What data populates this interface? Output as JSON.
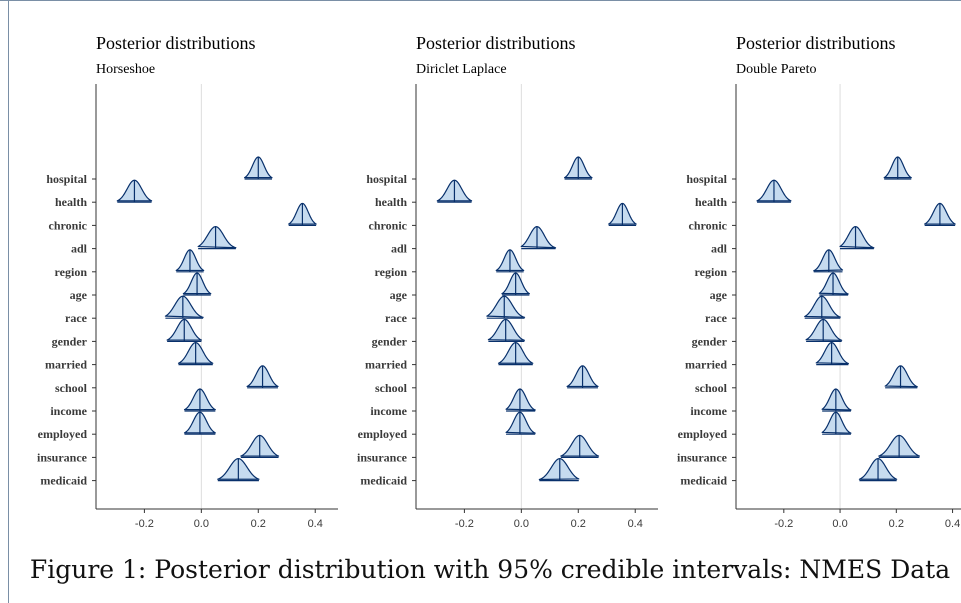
{
  "caption": "Figure 1: Posterior distribution with 95% credible intervals: NMES Data",
  "colors": {
    "fill": "#c6dbef",
    "stroke": "#08306b",
    "axis": "#333333",
    "zero_line": "#dddddd"
  },
  "chart_data": [
    {
      "type": "ridgeline",
      "title": "Posterior distributions",
      "subtitle": "Horseshoe",
      "x_ticks": [
        -0.2,
        0.0,
        0.2,
        0.4
      ],
      "x_tick_labels": [
        "-0.2",
        "0.0",
        "0.2",
        "0.4"
      ],
      "xlim": [
        -0.37,
        0.48
      ],
      "zero_line": true,
      "categories": [
        "hospital",
        "health",
        "chronic",
        "adl",
        "region",
        "age",
        "race",
        "gender",
        "married",
        "school",
        "income",
        "employed",
        "insurance",
        "medicaid"
      ],
      "means": [
        0.2,
        -0.235,
        0.355,
        0.05,
        -0.04,
        -0.015,
        -0.065,
        -0.06,
        -0.02,
        0.215,
        -0.005,
        -0.005,
        0.205,
        0.13
      ],
      "ci_lower": [
        0.16,
        -0.285,
        0.315,
        0.0,
        -0.08,
        -0.055,
        -0.115,
        -0.11,
        -0.07,
        0.17,
        -0.05,
        -0.05,
        0.15,
        0.07
      ],
      "ci_upper": [
        0.24,
        -0.185,
        0.395,
        0.11,
        0.0,
        0.025,
        -0.005,
        -0.01,
        0.03,
        0.26,
        0.04,
        0.04,
        0.26,
        0.19
      ]
    },
    {
      "type": "ridgeline",
      "title": "Posterior distributions",
      "subtitle": "Diriclet Laplace",
      "x_ticks": [
        -0.2,
        0.0,
        0.2,
        0.4
      ],
      "x_tick_labels": [
        "-0.2",
        "0.0",
        "0.2",
        "0.4"
      ],
      "xlim": [
        -0.37,
        0.48
      ],
      "zero_line": true,
      "categories": [
        "hospital",
        "health",
        "chronic",
        "adl",
        "region",
        "age",
        "race",
        "gender",
        "married",
        "school",
        "income",
        "employed",
        "insurance",
        "medicaid"
      ],
      "means": [
        0.2,
        -0.235,
        0.355,
        0.055,
        -0.04,
        -0.02,
        -0.06,
        -0.055,
        -0.02,
        0.215,
        -0.005,
        -0.005,
        0.205,
        0.135
      ],
      "ci_lower": [
        0.16,
        -0.285,
        0.315,
        0.01,
        -0.08,
        -0.06,
        -0.11,
        -0.105,
        -0.07,
        0.17,
        -0.045,
        -0.045,
        0.15,
        0.075
      ],
      "ci_upper": [
        0.24,
        -0.185,
        0.395,
        0.11,
        0.0,
        0.02,
        0.0,
        0.0,
        0.03,
        0.26,
        0.04,
        0.04,
        0.26,
        0.19
      ]
    },
    {
      "type": "ridgeline",
      "title": "Posterior distributions",
      "subtitle": "Double Pareto",
      "x_ticks": [
        -0.2,
        0.0,
        0.2,
        0.4
      ],
      "x_tick_labels": [
        "-0.2",
        "0.0",
        "0.2",
        "0.4"
      ],
      "xlim": [
        -0.37,
        0.43
      ],
      "zero_line": true,
      "categories": [
        "hospital",
        "health",
        "chronic",
        "adl",
        "region",
        "age",
        "race",
        "gender",
        "married",
        "school",
        "income",
        "employed",
        "insurance",
        "medicaid"
      ],
      "means": [
        0.205,
        -0.235,
        0.355,
        0.055,
        -0.04,
        -0.025,
        -0.065,
        -0.06,
        -0.03,
        0.215,
        -0.015,
        -0.015,
        0.21,
        0.135
      ],
      "ci_lower": [
        0.165,
        -0.285,
        0.31,
        0.01,
        -0.085,
        -0.065,
        -0.115,
        -0.11,
        -0.075,
        0.17,
        -0.055,
        -0.055,
        0.15,
        0.08
      ],
      "ci_upper": [
        0.245,
        -0.185,
        0.4,
        0.11,
        0.0,
        0.02,
        -0.01,
        -0.005,
        0.02,
        0.265,
        0.03,
        0.03,
        0.27,
        0.19
      ]
    }
  ]
}
